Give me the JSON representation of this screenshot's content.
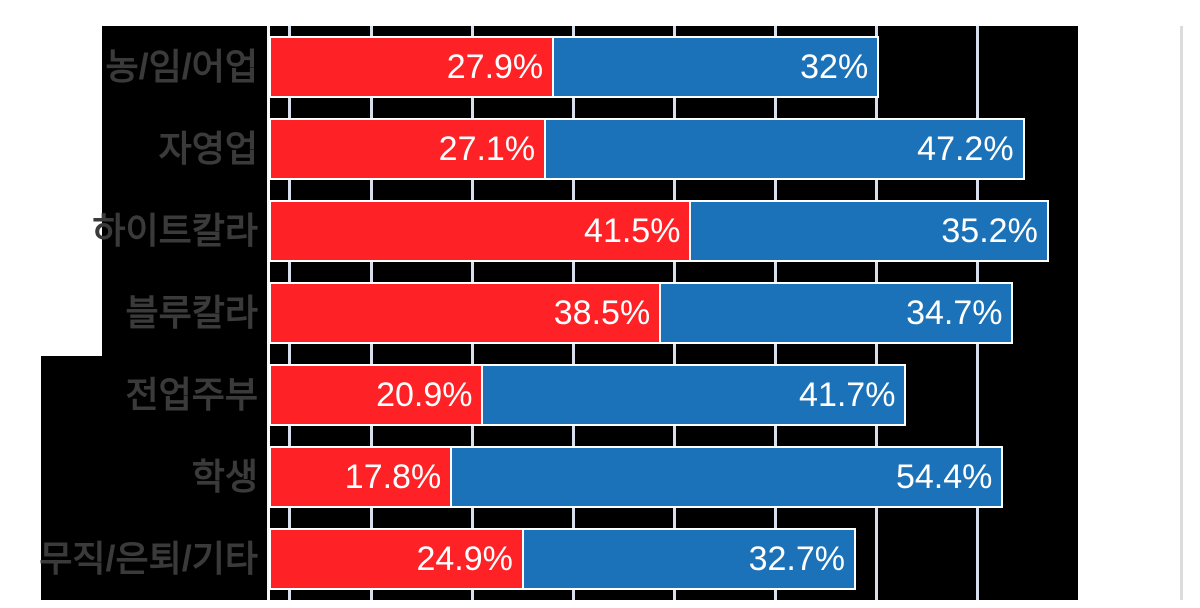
{
  "page": {
    "background_color": "#ffffff"
  },
  "chart_data": {
    "type": "bar",
    "orientation": "horizontal",
    "stacked": true,
    "title": "",
    "legend": "none",
    "categories": [
      "농/임/어업",
      "자영업",
      "하이트칼라",
      "블루칼라",
      "전업주부",
      "학생",
      "무직/은퇴/기타"
    ],
    "series": [
      {
        "name": "red-series",
        "color": "#fe2125",
        "values": [
          27.9,
          27.1,
          41.5,
          38.5,
          20.9,
          17.8,
          24.9
        ],
        "labels": [
          "27.9%",
          "27.1%",
          "41.5%",
          "38.5%",
          "20.9%",
          "17.8%",
          "24.9%"
        ]
      },
      {
        "name": "blue-series",
        "color": "#1c72b8",
        "values": [
          32,
          47.2,
          35.2,
          34.7,
          41.7,
          54.4,
          32.7
        ],
        "labels": [
          "32%",
          "47.2%",
          "35.2%",
          "34.7%",
          "41.7%",
          "54.4%",
          "32.7%"
        ]
      }
    ],
    "value_axis": {
      "min": 0,
      "max": 80,
      "unit": "%",
      "gridlines_percent": [
        10,
        20,
        30,
        40,
        50,
        60,
        70
      ],
      "extra_gridline_percent": 1.85,
      "tick_labels_visible": false
    },
    "style": {
      "plot_background": "#000000",
      "category_label_color": "#3a3a3a",
      "value_label_color": "#ffffff",
      "gridline_color": "#d8dfec",
      "axis_line_color": "#f4f6fa",
      "bar_border_color": "#ffffff",
      "page_edge_line_color": "#dcdcdc"
    }
  }
}
